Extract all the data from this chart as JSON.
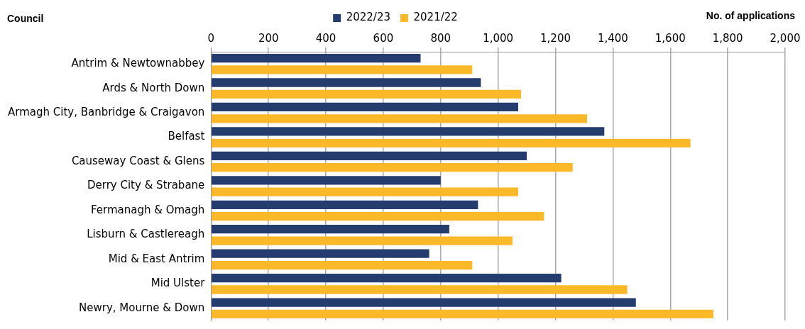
{
  "chart_data": {
    "type": "bar",
    "orientation": "horizontal",
    "xlabel": "No. of applications",
    "ylabel": "Council",
    "categories": [
      "Antrim & Newtownabbey",
      "Ards & North Down",
      "Armagh City, Banbridge & Craigavon",
      "Belfast",
      "Causeway Coast & Glens",
      "Derry City & Strabane",
      "Fermanagh & Omagh",
      "Lisburn & Castlereagh",
      "Mid & East Antrim",
      "Mid Ulster",
      "Newry, Mourne & Down"
    ],
    "series": [
      {
        "name": "2022/23",
        "color": "#253c6e",
        "values": [
          730,
          940,
          1070,
          1370,
          1100,
          800,
          930,
          830,
          760,
          1220,
          1480
        ]
      },
      {
        "name": "2021/22",
        "color": "#fbb829",
        "values": [
          910,
          1080,
          1310,
          1670,
          1260,
          1070,
          1160,
          1050,
          910,
          1450,
          1750
        ]
      }
    ],
    "xlim": [
      0,
      2000
    ],
    "xticks": [
      0,
      {
        "value": 200,
        "label": "200"
      },
      {
        "value": 400,
        "label": "400"
      },
      {
        "value": 600,
        "label": "600"
      },
      {
        "value": 800,
        "label": "800"
      },
      {
        "value": 1000,
        "label": "1,000"
      },
      {
        "value": 1200,
        "label": "1,200"
      },
      {
        "value": 1400,
        "label": "1,400"
      },
      {
        "value": 1600,
        "label": "1,600"
      },
      {
        "value": 1800,
        "label": "1,800"
      },
      {
        "value": 2000,
        "label": "2,000"
      }
    ],
    "grid": "x",
    "legend": "top"
  }
}
